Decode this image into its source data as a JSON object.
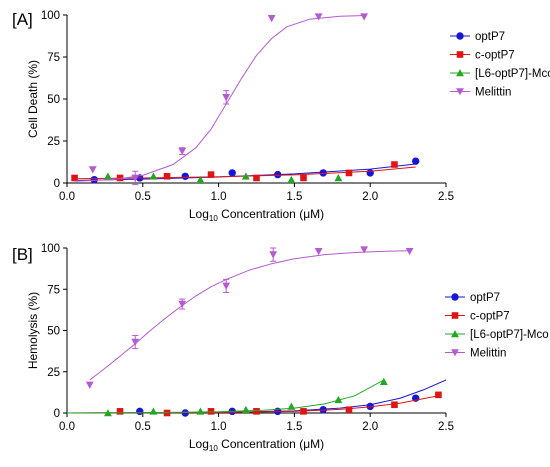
{
  "chart_data": [
    {
      "panel_label": "[A]",
      "type": "scatter",
      "xlabel_main": "Log",
      "xlabel_sub": "10",
      "xlabel_rest": " Concentration (μM)",
      "ylabel": "Cell Death (%)",
      "xlim": [
        0.0,
        2.5
      ],
      "ylim": [
        0,
        100
      ],
      "xticks": [
        "0.0",
        "0.5",
        "1.0",
        "1.5",
        "2.0",
        "2.5"
      ],
      "yticks": [
        "0",
        "25",
        "50",
        "75",
        "100"
      ],
      "grid": false,
      "legend_position": "right",
      "series": [
        {
          "name": "optP7",
          "marker": "circle",
          "color": "#1616d8",
          "x": [
            0.18,
            0.48,
            0.78,
            1.09,
            1.39,
            1.69,
            2.0,
            2.3
          ],
          "y": [
            2,
            3,
            4,
            6,
            5,
            6,
            6,
            13
          ],
          "fit": [
            [
              0.05,
              1.5
            ],
            [
              0.5,
              2.3
            ],
            [
              1.0,
              3.6
            ],
            [
              1.5,
              5.4
            ],
            [
              2.0,
              8.3
            ],
            [
              2.3,
              11.3
            ]
          ]
        },
        {
          "name": "c-optP7",
          "marker": "square",
          "color": "#e01414",
          "x": [
            0.05,
            0.35,
            0.66,
            0.95,
            1.25,
            1.56,
            1.86,
            2.16
          ],
          "y": [
            3,
            3,
            4,
            5,
            3,
            3,
            6,
            11
          ],
          "fit": [
            [
              0.05,
              2.5
            ],
            [
              0.5,
              3.0
            ],
            [
              1.0,
              3.7
            ],
            [
              1.5,
              4.8
            ],
            [
              2.0,
              7.0
            ],
            [
              2.3,
              9.5
            ]
          ]
        },
        {
          "name": "[L6-optP7]-Mco",
          "marker": "triangle-up",
          "color": "#21a821",
          "x": [
            0.27,
            0.57,
            0.88,
            1.18,
            1.48,
            1.79
          ],
          "y": [
            4,
            4,
            2,
            4,
            2,
            3
          ],
          "fit": []
        },
        {
          "name": "Melittin",
          "marker": "triangle-down",
          "color": "#b45ad2",
          "x": [
            0.17,
            0.45,
            0.76,
            1.05,
            1.35,
            1.66,
            1.96
          ],
          "y": [
            8,
            3,
            19,
            51,
            98,
            99,
            99
          ],
          "err": [
            0,
            4,
            2,
            4,
            0,
            0,
            0
          ],
          "fit": [
            [
              0.05,
              1.0
            ],
            [
              0.3,
              2.0
            ],
            [
              0.5,
              4.5
            ],
            [
              0.7,
              11.0
            ],
            [
              0.85,
              21.0
            ],
            [
              0.95,
              32.0
            ],
            [
              1.05,
              47.0
            ],
            [
              1.15,
              62.0
            ],
            [
              1.25,
              76.0
            ],
            [
              1.35,
              86.0
            ],
            [
              1.45,
              93.0
            ],
            [
              1.6,
              97.5
            ],
            [
              1.8,
              99.3
            ],
            [
              1.97,
              99.7
            ]
          ]
        }
      ]
    },
    {
      "panel_label": "[B]",
      "type": "scatter",
      "xlabel_main": "Log",
      "xlabel_sub": "10",
      "xlabel_rest": " Concentration (μM)",
      "ylabel": "Hemolysis (%)",
      "xlim": [
        0.0,
        2.5
      ],
      "ylim": [
        0,
        100
      ],
      "xticks": [
        "0.0",
        "0.5",
        "1.0",
        "1.5",
        "2.0",
        "2.5"
      ],
      "yticks": [
        "0",
        "25",
        "50",
        "75",
        "100"
      ],
      "grid": false,
      "legend_position": "right",
      "series": [
        {
          "name": "optP7",
          "marker": "circle",
          "color": "#1616d8",
          "x": [
            0.48,
            0.78,
            1.09,
            1.39,
            1.69,
            2.0,
            2.3
          ],
          "y": [
            1,
            0,
            1,
            1,
            2,
            4,
            9
          ],
          "fit": [
            [
              0.0,
              0.0
            ],
            [
              1.0,
              0.3
            ],
            [
              1.5,
              1.3
            ],
            [
              1.8,
              3.0
            ],
            [
              2.0,
              5.0
            ],
            [
              2.2,
              9.0
            ],
            [
              2.35,
              14.0
            ],
            [
              2.5,
              20.0
            ]
          ]
        },
        {
          "name": "c-optP7",
          "marker": "square",
          "color": "#e01414",
          "x": [
            0.35,
            0.66,
            0.95,
            1.25,
            1.56,
            1.86,
            2.16,
            2.45
          ],
          "y": [
            1,
            0,
            1,
            1,
            1,
            2,
            5,
            11
          ],
          "fit": [
            [
              0.0,
              0.0
            ],
            [
              1.0,
              0.3
            ],
            [
              1.5,
              1.0
            ],
            [
              1.8,
              2.2
            ],
            [
              2.0,
              3.7
            ],
            [
              2.2,
              6.0
            ],
            [
              2.45,
              10.5
            ]
          ]
        },
        {
          "name": "[L6-optP7]-Mco",
          "marker": "triangle-up",
          "color": "#21a821",
          "x": [
            0.27,
            0.57,
            0.88,
            1.18,
            1.48,
            1.79,
            2.09
          ],
          "y": [
            0,
            1,
            1,
            2,
            4,
            8,
            19
          ],
          "fit": [
            [
              0.0,
              0.0
            ],
            [
              0.5,
              0.2
            ],
            [
              1.0,
              0.7
            ],
            [
              1.3,
              1.7
            ],
            [
              1.5,
              3.0
            ],
            [
              1.7,
              5.5
            ],
            [
              1.9,
              10.5
            ],
            [
              2.09,
              20.0
            ]
          ]
        },
        {
          "name": "Melittin",
          "marker": "triangle-down",
          "color": "#b45ad2",
          "x": [
            0.15,
            0.45,
            0.76,
            1.05,
            1.36,
            1.66,
            1.96,
            2.26
          ],
          "y": [
            17,
            43,
            66,
            77,
            96,
            98,
            99,
            98
          ],
          "err": [
            0,
            4,
            3,
            4,
            4,
            0,
            0,
            0
          ],
          "fit": [
            [
              0.15,
              20.0
            ],
            [
              0.25,
              27.0
            ],
            [
              0.35,
              34.5
            ],
            [
              0.45,
              42.0
            ],
            [
              0.55,
              50.0
            ],
            [
              0.65,
              57.5
            ],
            [
              0.75,
              64.5
            ],
            [
              0.85,
              71.0
            ],
            [
              0.95,
              76.5
            ],
            [
              1.05,
              81.0
            ],
            [
              1.2,
              86.5
            ],
            [
              1.35,
              90.5
            ],
            [
              1.5,
              93.5
            ],
            [
              1.7,
              96.0
            ],
            [
              1.9,
              97.3
            ],
            [
              2.1,
              98.0
            ],
            [
              2.26,
              98.3
            ]
          ]
        }
      ]
    }
  ]
}
